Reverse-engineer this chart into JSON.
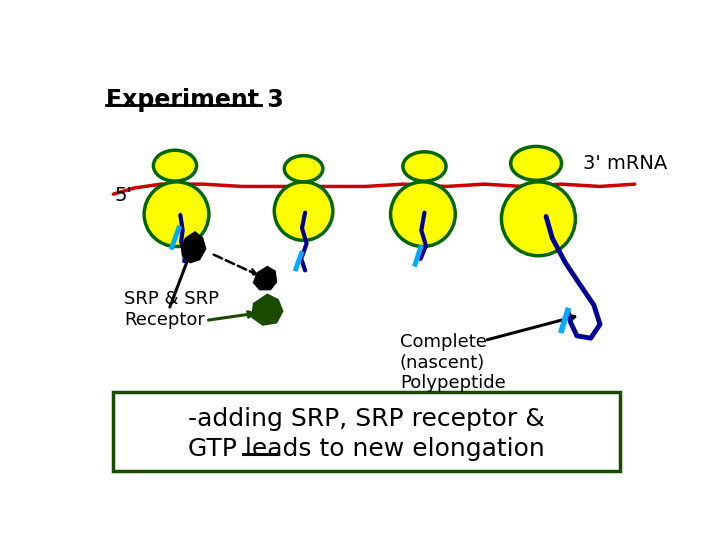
{
  "title": "Experiment 3",
  "label_5prime": "5'",
  "label_3prime": "3' mRNA",
  "label_srp": "SRP & SRP\nReceptor",
  "label_complete": "Complete\n(nascent)\nPolypeptide",
  "label_bottom_line1": "-adding SRP, SRP receptor &",
  "label_bottom_line2": "GTP leads to new elongation",
  "bg_color": "#ffffff",
  "yellow": "#ffff00",
  "dark_green": "#006600",
  "mrna_color": "#cc0000",
  "poly_color": "#000099",
  "sig_color": "#00aaff",
  "srp_receptor_color": "#1a4a00",
  "box_border_color": "#1a4a00"
}
